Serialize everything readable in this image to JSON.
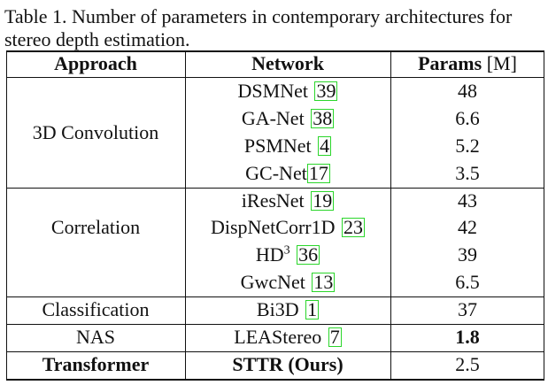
{
  "caption_lines": [
    "Table 1. Number of parameters in contemporary architectures for",
    "stereo depth estimation."
  ],
  "header": {
    "approach": "Approach",
    "network": "Network",
    "params": "Params",
    "params_unit": "[M]"
  },
  "groups": [
    {
      "approach": "3D Convolution",
      "rows": [
        {
          "network": "DSMNet",
          "cite": "39",
          "params": "48"
        },
        {
          "network": "GA-Net",
          "cite": "38",
          "params": "6.6"
        },
        {
          "network": "PSMNet",
          "cite": "4",
          "params": "5.2"
        },
        {
          "network": "GC-Net",
          "cite": "17",
          "params": "3.5"
        }
      ]
    },
    {
      "approach": "Correlation",
      "rows": [
        {
          "network": "iResNet",
          "cite": "19",
          "params": "43"
        },
        {
          "network": "DispNetCorr1D",
          "cite": "23",
          "params": "42"
        },
        {
          "network": "HD",
          "sup": "3",
          "cite": "36",
          "params": "39"
        },
        {
          "network": "GwcNet",
          "cite": "13",
          "params": "6.5"
        }
      ]
    },
    {
      "approach": "Classification",
      "rows": [
        {
          "network": "Bi3D",
          "cite": "1",
          "params": "37"
        }
      ]
    },
    {
      "approach": "NAS",
      "rows": [
        {
          "network": "LEAStereo",
          "cite": "7",
          "params": "1.8"
        }
      ]
    },
    {
      "approach": "Transformer",
      "rows": [
        {
          "network": "STTR (Ours)",
          "params": "2.5"
        }
      ]
    }
  ],
  "colors": {
    "text": "#111111",
    "citation_box": "#2bd62b"
  }
}
